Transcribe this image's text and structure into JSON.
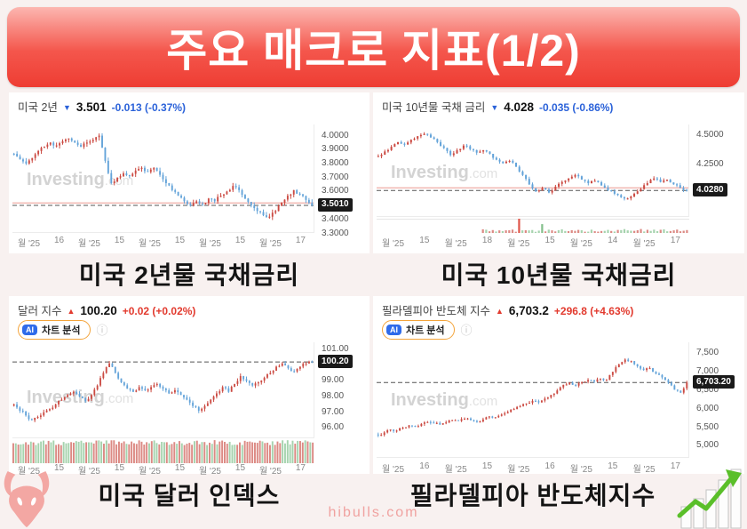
{
  "page": {
    "title": "주요 매크로 지표(1/2)",
    "footer": "hibulls.com",
    "background": "#f8f1f0",
    "banner_gradient_top": "#fcb6b0",
    "banner_gradient_bottom": "#ee3d33"
  },
  "icons": {
    "arrow_down": "▼",
    "arrow_up": "▲",
    "info": "ⓘ"
  },
  "colors": {
    "up_candle": "#cb4a42",
    "down_candle": "#63a3d9",
    "change_up": "#e23a2e",
    "change_down": "#2b62d9",
    "badge_bg": "#1a1a1a",
    "vol_up": "#a6d3ae",
    "vol_down": "#dc8a84"
  },
  "ai_button": {
    "badge": "AI",
    "label": "차트 분석"
  },
  "chart_data": [
    {
      "type": "candlestick",
      "id": "us-2y-treasury-yield",
      "header": {
        "name": "미국 2년",
        "direction": "down",
        "arrow_glyph": "▼",
        "price": "3.501",
        "change": "-0.013 (-0.37%)"
      },
      "caption": "미국 2년물 국채금리",
      "watermark": {
        "bold": "Investing",
        "light": ".com"
      },
      "y_ticks": [
        {
          "v": 4.0,
          "label": "4.0000"
        },
        {
          "v": 3.9,
          "label": "3.9000"
        },
        {
          "v": 3.8,
          "label": "3.8000"
        },
        {
          "v": 3.7,
          "label": "3.7000"
        },
        {
          "v": 3.6,
          "label": "3.6000"
        },
        {
          "v": 3.4,
          "label": "3.4000"
        },
        {
          "v": 3.3,
          "label": "3.3000"
        }
      ],
      "badge": {
        "v": 3.501,
        "label": "3.5010"
      },
      "x_ticks": [
        "월 '25",
        "16",
        "월 '25",
        "15",
        "월 '25",
        "15",
        "월 '25",
        "15",
        "월 '25",
        "17"
      ],
      "series": {
        "closes": [
          3.87,
          3.83,
          3.8,
          3.84,
          3.89,
          3.92,
          3.95,
          3.93,
          3.96,
          3.98,
          3.95,
          3.92,
          3.95,
          3.97,
          4.0,
          3.82,
          3.66,
          3.7,
          3.73,
          3.71,
          3.75,
          3.77,
          3.74,
          3.77,
          3.72,
          3.66,
          3.61,
          3.57,
          3.53,
          3.5,
          3.53,
          3.51,
          3.55,
          3.53,
          3.57,
          3.6,
          3.64,
          3.61,
          3.55,
          3.5,
          3.46,
          3.43,
          3.42,
          3.46,
          3.52,
          3.57,
          3.61,
          3.58,
          3.54,
          3.501
        ],
        "last": 3.501,
        "y_range": [
          3.31,
          4.08
        ],
        "jitter": 0.024,
        "seed": 11,
        "densify": 2,
        "ref_line": 3.518,
        "volume": null
      }
    },
    {
      "type": "candlestick",
      "id": "us-10y-treasury-yield",
      "header": {
        "name": "미국 10년물 국채 금리",
        "direction": "down",
        "arrow_glyph": "▼",
        "price": "4.028",
        "change": "-0.035 (-0.86%)"
      },
      "caption": "미국 10년물 국채금리",
      "watermark": {
        "bold": "Investing",
        "light": ".com"
      },
      "y_ticks": [
        {
          "v": 4.5,
          "label": "4.5000"
        },
        {
          "v": 4.25,
          "label": "4.2500"
        }
      ],
      "badge": {
        "v": 4.028,
        "label": "4.0280"
      },
      "x_ticks": [
        "월 '25",
        "15",
        "월 '25",
        "18",
        "월 '25",
        "15",
        "월 '25",
        "14",
        "월 '25",
        "17"
      ],
      "series": {
        "closes": [
          4.32,
          4.36,
          4.4,
          4.44,
          4.42,
          4.46,
          4.49,
          4.51,
          4.48,
          4.44,
          4.39,
          4.33,
          4.37,
          4.41,
          4.38,
          4.35,
          4.37,
          4.34,
          4.29,
          4.26,
          4.28,
          4.23,
          4.16,
          4.08,
          4.02,
          4.05,
          4.01,
          4.06,
          4.1,
          4.13,
          4.16,
          4.12,
          4.09,
          4.11,
          4.07,
          4.03,
          4.0,
          3.97,
          3.96,
          4.0,
          4.04,
          4.09,
          4.13,
          4.1,
          4.12,
          4.08,
          4.05,
          4.028
        ],
        "last": 4.028,
        "y_range": [
          3.81,
          4.59
        ],
        "jitter": 0.02,
        "seed": 23,
        "densify": 2,
        "ref_line": 4.05,
        "volume": {
          "type": "mini",
          "start_frac": 0.33,
          "base_h": 0.2,
          "spikes": [
            {
              "at": 0.45,
              "h": 1.0,
              "color": "#e0564a"
            },
            {
              "at": 0.53,
              "h": 0.62,
              "color": "#84c08c"
            }
          ]
        }
      }
    },
    {
      "type": "candlestick",
      "id": "us-dollar-index",
      "header": {
        "name": "달러 지수",
        "direction": "up",
        "arrow_glyph": "▲",
        "price": "100.20",
        "change": "+0.02 (+0.02%)"
      },
      "caption": "미국 달러 인덱스",
      "has_ai_button": true,
      "watermark": {
        "bold": "Investing",
        "light": ".com"
      },
      "y_ticks": [
        {
          "v": 101,
          "label": "101.00"
        },
        {
          "v": 99,
          "label": "99.00"
        },
        {
          "v": 98,
          "label": "98.00"
        },
        {
          "v": 97,
          "label": "97.00"
        },
        {
          "v": 96,
          "label": "96.00"
        }
      ],
      "badge": {
        "v": 100.2,
        "label": "100.20"
      },
      "x_ticks": [
        "월 '25",
        "15",
        "월 '25",
        "15",
        "월 '25",
        "15",
        "월 '25",
        "15",
        "월 '25",
        "17"
      ],
      "series": {
        "closes": [
          97.5,
          97.1,
          96.8,
          96.5,
          96.7,
          97.0,
          97.2,
          97.5,
          97.8,
          98.1,
          98.3,
          98.0,
          97.7,
          98.1,
          98.7,
          99.5,
          100.1,
          99.5,
          98.9,
          98.5,
          98.3,
          98.6,
          98.4,
          98.6,
          98.8,
          98.5,
          98.2,
          98.4,
          98.1,
          97.8,
          97.4,
          97.1,
          97.4,
          97.8,
          98.2,
          98.6,
          98.3,
          98.8,
          99.3,
          99.0,
          98.7,
          98.9,
          99.2,
          99.5,
          99.9,
          100.1,
          99.8,
          99.6,
          99.9,
          100.1,
          100.2
        ],
        "last": 100.2,
        "y_range": [
          95.4,
          101.45
        ],
        "jitter": 0.18,
        "seed": 37,
        "densify": 2,
        "ref_line": null,
        "volume": {
          "type": "strip",
          "bars": 120
        }
      }
    },
    {
      "type": "candlestick",
      "id": "philadelphia-semiconductor-index",
      "header": {
        "name": "필라델피아 반도체 지수",
        "direction": "up",
        "arrow_glyph": "▲",
        "price": "6,703.2",
        "change": "+296.8 (+4.63%)"
      },
      "caption": "필라델피아 반도체지수",
      "has_ai_button": true,
      "watermark": {
        "bold": "Investing",
        "light": ".com"
      },
      "y_ticks": [
        {
          "v": 7500,
          "label": "7,500"
        },
        {
          "v": 7000,
          "label": "7,000"
        },
        {
          "v": 6500,
          "label": "6,500"
        },
        {
          "v": 6000,
          "label": "6,000"
        },
        {
          "v": 5500,
          "label": "5,500"
        },
        {
          "v": 5000,
          "label": "5,000"
        }
      ],
      "badge": {
        "v": 6703.2,
        "label": "6,703.20"
      },
      "x_ticks": [
        "월 '25",
        "16",
        "월 '25",
        "15",
        "월 '25",
        "16",
        "월 '25",
        "15",
        "월 '25",
        "17"
      ],
      "series": {
        "closes": [
          5280,
          5360,
          5440,
          5410,
          5490,
          5550,
          5520,
          5590,
          5640,
          5610,
          5570,
          5630,
          5690,
          5670,
          5730,
          5690,
          5640,
          5710,
          5790,
          5770,
          5840,
          5910,
          5990,
          6070,
          6140,
          6210,
          6170,
          6270,
          6370,
          6490,
          6640,
          6700,
          6620,
          6710,
          6770,
          6730,
          6810,
          6770,
          6990,
          7190,
          7320,
          7280,
          7140,
          7040,
          7090,
          6940,
          6840,
          6700,
          6510,
          6430,
          6703
        ],
        "last": 6703.2,
        "y_range": [
          4700,
          7785
        ],
        "jitter": 55,
        "seed": 53,
        "densify": 2,
        "ref_line": null,
        "volume": null
      }
    }
  ]
}
